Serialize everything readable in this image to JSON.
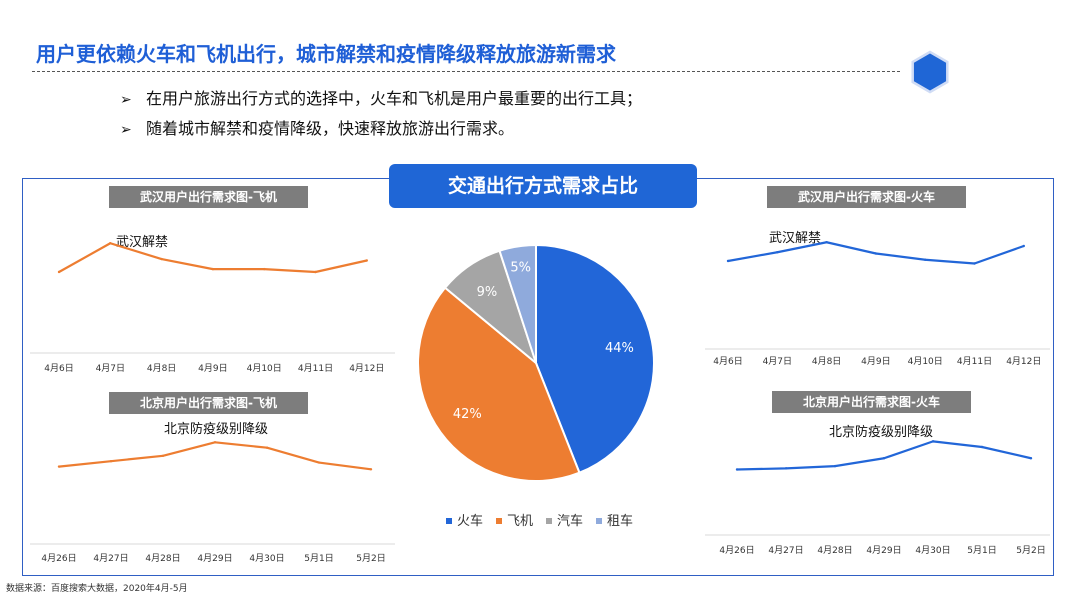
{
  "page": {
    "title": "用户更依赖火车和飞机出行，城市解禁和疫情降级释放旅游新需求",
    "bullets": [
      "在用户旅游出行方式的选择中，火车和飞机是用户最重要的出行工具；",
      "随着城市解禁和疫情降级，快速释放旅游出行需求。"
    ],
    "bullet_marker": "➢",
    "source": "数据来源：百度搜索大数据，2020年4月-5月"
  },
  "colors": {
    "title_blue": "#1f5fd6",
    "orange": "#ed7d31",
    "blue": "#2266d8",
    "gray": "#a5a5a5",
    "light_blue": "#8faadc",
    "label_gray": "#7d7d7d"
  },
  "chart_data": [
    {
      "id": "wuhan-plane",
      "type": "line",
      "title": "武汉用户出行需求图-飞机",
      "annotation": "武汉解禁",
      "categories": [
        "4月6日",
        "4月7日",
        "4月8日",
        "4月9日",
        "4月10日",
        "4月11日",
        "4月12日"
      ],
      "series": [
        {
          "values": [
            48,
            68,
            57,
            50,
            50,
            48,
            56
          ]
        }
      ],
      "ylim": [
        0,
        80
      ],
      "grid": false
    },
    {
      "id": "beijing-plane",
      "type": "line",
      "title": "北京用户出行需求图-飞机",
      "annotation": "北京防疫级别降级",
      "categories": [
        "4月26日",
        "4月27日",
        "4月28日",
        "4月29日",
        "4月30日",
        "5月1日",
        "5月2日"
      ],
      "series": [
        {
          "values": [
            44,
            48,
            52,
            62,
            58,
            47,
            42
          ]
        }
      ],
      "ylim": [
        0,
        80
      ],
      "grid": false
    },
    {
      "id": "mode-share",
      "type": "pie",
      "title": "交通出行方式需求占比",
      "slices": [
        {
          "label": "火车",
          "value": 44,
          "text": "44%"
        },
        {
          "label": "飞机",
          "value": 42,
          "text": "42%"
        },
        {
          "label": "汽车",
          "value": 9,
          "text": "9%"
        },
        {
          "label": "租车",
          "value": 5,
          "text": "5%"
        }
      ],
      "legend": "bottom"
    },
    {
      "id": "wuhan-train",
      "type": "line",
      "title": "武汉用户出行需求图-火车",
      "annotation": "武汉解禁",
      "categories": [
        "4月6日",
        "4月7日",
        "4月8日",
        "4月9日",
        "4月10日",
        "4月11日",
        "4月12日"
      ],
      "series": [
        {
          "values": [
            52,
            59,
            67,
            58,
            53,
            50,
            64
          ]
        }
      ],
      "ylim": [
        0,
        80
      ],
      "grid": false
    },
    {
      "id": "beijing-train",
      "type": "line",
      "title": "北京用户出行需求图-火车",
      "annotation": "北京防疫级别降级",
      "categories": [
        "4月26日",
        "4月27日",
        "4月28日",
        "4月29日",
        "4月30日",
        "5月1日",
        "5月2日"
      ],
      "series": [
        {
          "values": [
            36,
            37,
            39,
            46,
            61,
            56,
            46
          ]
        }
      ],
      "ylim": [
        0,
        80
      ],
      "grid": false
    }
  ]
}
